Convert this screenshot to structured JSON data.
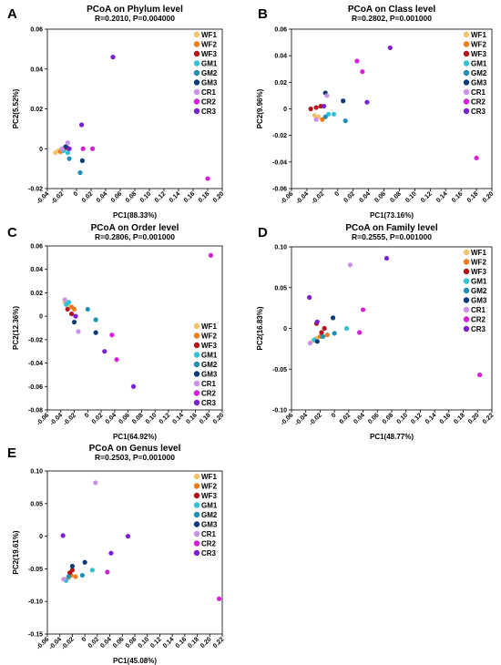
{
  "chart_data": [
    {
      "type": "scatter",
      "panel_label": "A",
      "title": "PCoA on Phylum level",
      "subtitle": "R=0.2010, P=0.004000",
      "xlabel": "PC1(88.33%)",
      "ylabel": "PC2(5.52%)",
      "xlim": [
        -0.04,
        0.2
      ],
      "ylim": [
        -0.02,
        0.06
      ],
      "xticks": [
        "-0.04",
        "-0.02",
        "0",
        "0.02",
        "0.04",
        "0.06",
        "0.08",
        "0.10",
        "0.12",
        "0.14",
        "0.16",
        "0.18",
        "0.20"
      ],
      "yticks": [
        "-0.02",
        "0",
        "0.02",
        "0.04",
        "0.06"
      ],
      "legend_position": "top-right",
      "grid": false,
      "series": [
        {
          "name": "WF1",
          "color": "#f5c26b",
          "points": [
            [
              -0.029,
              -0.002
            ],
            [
              -0.025,
              -0.001
            ]
          ]
        },
        {
          "name": "WF2",
          "color": "#ef7c1a",
          "points": [
            [
              -0.022,
              -0.0015
            ]
          ]
        },
        {
          "name": "WF3",
          "color": "#b5121b",
          "points": [
            [
              -0.017,
              0.0
            ],
            [
              -0.013,
              0.0005
            ]
          ]
        },
        {
          "name": "GM1",
          "color": "#2ec4d6",
          "points": [
            [
              -0.018,
              -0.001
            ],
            [
              -0.012,
              -0.002
            ]
          ]
        },
        {
          "name": "GM2",
          "color": "#1f8fb4",
          "points": [
            [
              0.005,
              -0.012
            ],
            [
              -0.01,
              -0.005
            ]
          ]
        },
        {
          "name": "GM3",
          "color": "#0d3b7a",
          "points": [
            [
              0.008,
              -0.006
            ],
            [
              -0.015,
              0.001
            ]
          ]
        },
        {
          "name": "CR1",
          "color": "#c992e8",
          "points": [
            [
              -0.012,
              0.003
            ],
            [
              -0.02,
              0.0
            ]
          ]
        },
        {
          "name": "CR2",
          "color": "#d61fd6",
          "points": [
            [
              0.009,
              0.0
            ],
            [
              0.022,
              0.0
            ],
            [
              0.18,
              -0.015
            ]
          ]
        },
        {
          "name": "CR3",
          "color": "#7a1fd6",
          "points": [
            [
              0.05,
              0.046
            ],
            [
              0.007,
              0.012
            ],
            [
              -0.01,
              0.0
            ]
          ]
        }
      ]
    },
    {
      "type": "scatter",
      "panel_label": "B",
      "title": "PCoA on Class level",
      "subtitle": "R=0.2802, P=0.001000",
      "xlabel": "PC1(73.16%)",
      "ylabel": "PC2(9.96%)",
      "xlim": [
        -0.06,
        0.2
      ],
      "ylim": [
        -0.06,
        0.06
      ],
      "xticks": [
        "-0.06",
        "-0.04",
        "-0.02",
        "0",
        "0.02",
        "0.04",
        "0.06",
        "0.08",
        "0.10",
        "0.12",
        "0.14",
        "0.16",
        "0.18",
        "0.20"
      ],
      "yticks": [
        "-0.06",
        "-0.04",
        "-0.02",
        "0",
        "0.02",
        "0.04",
        "0.06"
      ],
      "legend_position": "top-right",
      "grid": false,
      "series": [
        {
          "name": "WF1",
          "color": "#f5c26b",
          "points": [
            [
              -0.03,
              -0.005
            ],
            [
              -0.025,
              -0.006
            ]
          ]
        },
        {
          "name": "WF2",
          "color": "#ef7c1a",
          "points": [
            [
              -0.02,
              -0.008
            ]
          ]
        },
        {
          "name": "WF3",
          "color": "#b5121b",
          "points": [
            [
              -0.035,
              0.0
            ],
            [
              -0.028,
              0.001
            ],
            [
              -0.022,
              0.002
            ]
          ]
        },
        {
          "name": "GM1",
          "color": "#2ec4d6",
          "points": [
            [
              -0.012,
              -0.004
            ],
            [
              -0.005,
              -0.004
            ]
          ]
        },
        {
          "name": "GM2",
          "color": "#1f8fb4",
          "points": [
            [
              0.01,
              -0.009
            ],
            [
              -0.016,
              -0.006
            ]
          ]
        },
        {
          "name": "GM3",
          "color": "#0d3b7a",
          "points": [
            [
              -0.016,
              0.012
            ],
            [
              0.007,
              0.006
            ]
          ]
        },
        {
          "name": "CR1",
          "color": "#c992e8",
          "points": [
            [
              -0.014,
              0.01
            ],
            [
              -0.028,
              -0.008
            ]
          ]
        },
        {
          "name": "CR2",
          "color": "#d61fd6",
          "points": [
            [
              0.025,
              0.036
            ],
            [
              0.032,
              0.028
            ],
            [
              0.18,
              -0.037
            ]
          ]
        },
        {
          "name": "CR3",
          "color": "#7a1fd6",
          "points": [
            [
              0.068,
              0.046
            ],
            [
              0.038,
              0.005
            ],
            [
              -0.018,
              0.002
            ]
          ]
        }
      ]
    },
    {
      "type": "scatter",
      "panel_label": "C",
      "title": "PCoA on Order level",
      "subtitle": "R=0.2806, P=0.001000",
      "xlabel": "PC1(64.92%)",
      "ylabel": "PC2(12.36%)",
      "xlim": [
        -0.06,
        0.2
      ],
      "ylim": [
        -0.08,
        0.06
      ],
      "xticks": [
        "-0.06",
        "-0.04",
        "-0.02",
        "0",
        "0.02",
        "0.04",
        "0.06",
        "0.08",
        "0.10",
        "0.12",
        "0.14",
        "0.16",
        "0.18",
        "0.20"
      ],
      "yticks": [
        "-0.08",
        "-0.06",
        "-0.04",
        "-0.02",
        "0",
        "0.02",
        "0.04",
        "0.06"
      ],
      "legend_position": "bottom-right",
      "grid": false,
      "series": [
        {
          "name": "WF1",
          "color": "#f5c26b",
          "points": [
            [
              -0.034,
              0.012
            ],
            [
              -0.03,
              0.01
            ]
          ]
        },
        {
          "name": "WF2",
          "color": "#ef7c1a",
          "points": [
            [
              -0.024,
              0.008
            ],
            [
              -0.02,
              0.006
            ]
          ]
        },
        {
          "name": "WF3",
          "color": "#b5121b",
          "points": [
            [
              -0.03,
              0.006
            ],
            [
              -0.024,
              0.002
            ]
          ]
        },
        {
          "name": "GM1",
          "color": "#2ec4d6",
          "points": [
            [
              -0.032,
              0.01
            ],
            [
              -0.028,
              0.012
            ]
          ]
        },
        {
          "name": "GM2",
          "color": "#1f8fb4",
          "points": [
            [
              0.0,
              0.006
            ],
            [
              0.012,
              -0.003
            ]
          ]
        },
        {
          "name": "GM3",
          "color": "#0d3b7a",
          "points": [
            [
              -0.02,
              -0.005
            ],
            [
              0.012,
              -0.014
            ]
          ]
        },
        {
          "name": "CR1",
          "color": "#c992e8",
          "points": [
            [
              -0.034,
              0.014
            ],
            [
              -0.014,
              -0.013
            ]
          ]
        },
        {
          "name": "CR2",
          "color": "#d61fd6",
          "points": [
            [
              0.036,
              -0.016
            ],
            [
              0.043,
              -0.037
            ],
            [
              0.183,
              0.052
            ]
          ]
        },
        {
          "name": "CR3",
          "color": "#7a1fd6",
          "points": [
            [
              0.025,
              -0.03
            ],
            [
              0.068,
              -0.06
            ],
            [
              -0.018,
              0.0
            ]
          ]
        }
      ]
    },
    {
      "type": "scatter",
      "panel_label": "D",
      "title": "PCoA on Family level",
      "subtitle": "R=0.2555, P=0.001000",
      "xlabel": "PC1(48.77%)",
      "ylabel": "PC2(16.83%)",
      "xlim": [
        -0.06,
        0.22
      ],
      "ylim": [
        -0.1,
        0.1
      ],
      "xticks": [
        "-0.06",
        "-0.04",
        "-0.02",
        "0",
        "0.02",
        "0.04",
        "0.06",
        "0.08",
        "0.10",
        "0.12",
        "0.14",
        "0.16",
        "0.18",
        "0.20",
        "0.22"
      ],
      "yticks": [
        "-0.10",
        "-0.05",
        "0",
        "0.05",
        "0.10"
      ],
      "legend_position": "top-right",
      "grid": false,
      "series": [
        {
          "name": "WF1",
          "color": "#f5c26b",
          "points": [
            [
              -0.03,
              -0.015
            ],
            [
              -0.025,
              -0.012
            ]
          ]
        },
        {
          "name": "WF2",
          "color": "#ef7c1a",
          "points": [
            [
              -0.02,
              -0.01
            ],
            [
              -0.01,
              -0.008
            ]
          ]
        },
        {
          "name": "WF3",
          "color": "#b5121b",
          "points": [
            [
              -0.025,
              0.006
            ],
            [
              -0.018,
              -0.005
            ],
            [
              -0.014,
              0.0
            ]
          ]
        },
        {
          "name": "GM1",
          "color": "#2ec4d6",
          "points": [
            [
              -0.028,
              -0.014
            ],
            [
              0.017,
              0.0
            ]
          ]
        },
        {
          "name": "GM2",
          "color": "#1f8fb4",
          "points": [
            [
              -0.016,
              -0.01
            ],
            [
              0.0,
              -0.006
            ]
          ]
        },
        {
          "name": "GM3",
          "color": "#0d3b7a",
          "points": [
            [
              -0.002,
              0.013
            ],
            [
              -0.024,
              -0.016
            ]
          ]
        },
        {
          "name": "CR1",
          "color": "#c992e8",
          "points": [
            [
              0.022,
              0.078
            ],
            [
              -0.034,
              -0.018
            ]
          ]
        },
        {
          "name": "CR2",
          "color": "#d61fd6",
          "points": [
            [
              0.04,
              0.023
            ],
            [
              0.035,
              -0.005
            ],
            [
              0.203,
              -0.057
            ]
          ]
        },
        {
          "name": "CR3",
          "color": "#7a1fd6",
          "points": [
            [
              0.073,
              0.086
            ],
            [
              -0.035,
              0.038
            ],
            [
              -0.024,
              0.008
            ]
          ]
        }
      ]
    },
    {
      "type": "scatter",
      "panel_label": "E",
      "title": "PCoA on Genus level",
      "subtitle": "R=0.2503, P=0.001000",
      "xlabel": "PC1(45.08%)",
      "ylabel": "PC2(19.61%)",
      "xlim": [
        -0.06,
        0.22
      ],
      "ylim": [
        -0.15,
        0.1
      ],
      "xticks": [
        "-0.06",
        "-0.04",
        "-0.02",
        "0",
        "0.02",
        "0.04",
        "0.06",
        "0.08",
        "0.10",
        "0.12",
        "0.14",
        "0.16",
        "0.18",
        "0.20",
        "0.22"
      ],
      "yticks": [
        "-0.15",
        "-0.10",
        "-0.05",
        "0",
        "0.05",
        "0.10"
      ],
      "legend_position": "top-right",
      "grid": false,
      "series": [
        {
          "name": "WF1",
          "color": "#f5c26b",
          "points": [
            [
              -0.032,
              -0.066
            ],
            [
              -0.026,
              -0.064
            ]
          ]
        },
        {
          "name": "WF2",
          "color": "#ef7c1a",
          "points": [
            [
              -0.022,
              -0.06
            ],
            [
              -0.015,
              -0.062
            ]
          ]
        },
        {
          "name": "WF3",
          "color": "#b5121b",
          "points": [
            [
              -0.024,
              -0.056
            ],
            [
              -0.02,
              -0.052
            ]
          ]
        },
        {
          "name": "GM1",
          "color": "#2ec4d6",
          "points": [
            [
              -0.03,
              -0.068
            ],
            [
              0.012,
              -0.052
            ]
          ]
        },
        {
          "name": "GM2",
          "color": "#1f8fb4",
          "points": [
            [
              -0.004,
              -0.06
            ],
            [
              -0.026,
              -0.062
            ]
          ]
        },
        {
          "name": "GM3",
          "color": "#0d3b7a",
          "points": [
            [
              0.0,
              -0.04
            ],
            [
              -0.02,
              -0.046
            ]
          ]
        },
        {
          "name": "CR1",
          "color": "#c992e8",
          "points": [
            [
              0.017,
              0.082
            ],
            [
              -0.034,
              -0.066
            ]
          ]
        },
        {
          "name": "CR2",
          "color": "#d61fd6",
          "points": [
            [
              0.036,
              -0.055
            ],
            [
              0.215,
              -0.096
            ]
          ]
        },
        {
          "name": "CR3",
          "color": "#7a1fd6",
          "points": [
            [
              -0.035,
              0.001
            ],
            [
              0.042,
              -0.026
            ],
            [
              0.069,
              0.0
            ]
          ]
        }
      ]
    }
  ]
}
